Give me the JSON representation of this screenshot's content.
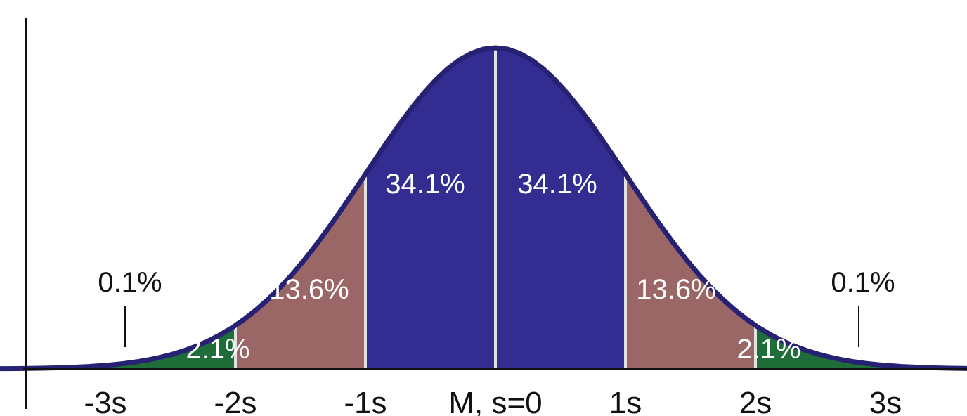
{
  "chart_data": {
    "type": "area",
    "title": "",
    "xlabel": "",
    "ylabel": "",
    "xlim": [
      -4.6,
      4.6
    ],
    "curve": "normal distribution",
    "tick_labels": [
      {
        "x": -3,
        "label": "-3s"
      },
      {
        "x": -2,
        "label": "-2s"
      },
      {
        "x": -1,
        "label": "-1s"
      },
      {
        "x": 0,
        "label": "M, s=0"
      },
      {
        "x": 1,
        "label": "1s"
      },
      {
        "x": 2,
        "label": "2s"
      },
      {
        "x": 3,
        "label": "3s"
      }
    ],
    "regions": [
      {
        "from": -4.6,
        "to": -3,
        "percent": "0.1%",
        "color": "#d3d1e6"
      },
      {
        "from": -3,
        "to": -2,
        "percent": "2.1%",
        "color": "#1f6e3a"
      },
      {
        "from": -2,
        "to": -1,
        "percent": "13.6%",
        "color": "#9a6666"
      },
      {
        "from": -1,
        "to": 0,
        "percent": "34.1%",
        "color": "#332d91"
      },
      {
        "from": 0,
        "to": 1,
        "percent": "34.1%",
        "color": "#332d91"
      },
      {
        "from": 1,
        "to": 2,
        "percent": "13.6%",
        "color": "#9a6666"
      },
      {
        "from": 2,
        "to": 3,
        "percent": "2.1%",
        "color": "#1f6e3a"
      },
      {
        "from": 3,
        "to": 4.6,
        "percent": "0.1%",
        "color": "#d3d1e6"
      }
    ],
    "curve_color": "#262173",
    "divider_color": "#e2e2e2"
  }
}
